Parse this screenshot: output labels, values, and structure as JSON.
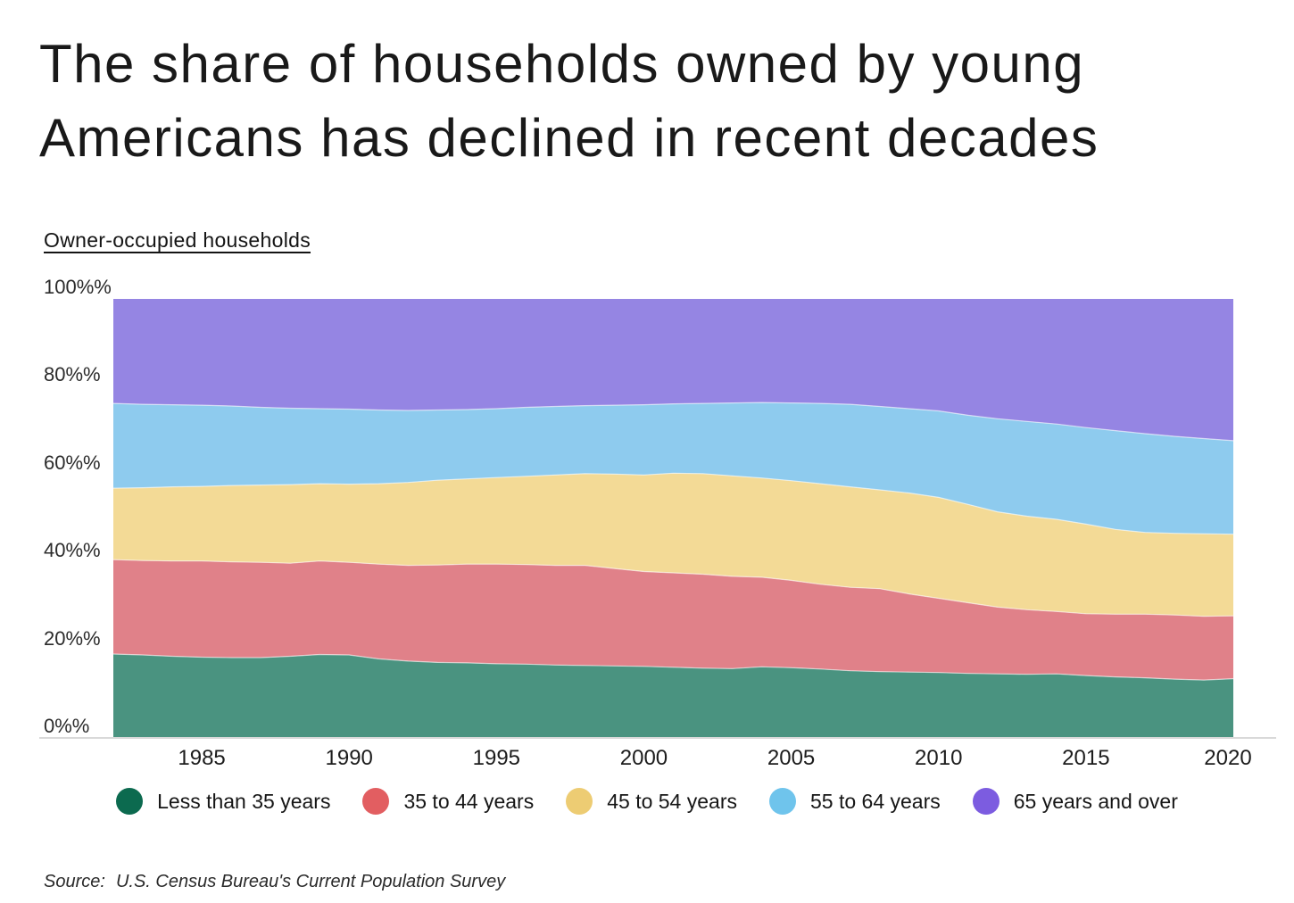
{
  "title": {
    "line1": "The share of households owned by young",
    "line2": "Americans has declined in recent decades",
    "full": "The share of households owned by young Americans has declined in recent decades"
  },
  "subtitle": "Owner-occupied households",
  "source": {
    "prefix": "Source:",
    "text": "U.S. Census Bureau's Current Population Survey"
  },
  "y_axis": {
    "tick_labels": [
      "100%%",
      "80%%",
      "60%%",
      "40%%",
      "20%%",
      "0%%"
    ],
    "tick_values": [
      100,
      80,
      60,
      40,
      20,
      0
    ]
  },
  "x_axis": {
    "tick_labels": [
      "1985",
      "1990",
      "1995",
      "2000",
      "2005",
      "2010",
      "2015",
      "2020"
    ],
    "tick_values": [
      1985,
      1990,
      1995,
      2000,
      2005,
      2010,
      2015,
      2020
    ]
  },
  "colors": {
    "axis_line": "#d9d9d9",
    "boundary_line": "#ffffff",
    "text": "#1a1a1a"
  },
  "chart_data": {
    "type": "area",
    "stacked": true,
    "normalized": true,
    "title": "The share of households owned by young Americans has declined in recent decades",
    "ylabel": "Owner-occupied households",
    "xlabel": "",
    "ylim": [
      0,
      100
    ],
    "x_range": [
      1982,
      2020
    ],
    "grid": false,
    "legend_position": "bottom",
    "x": [
      1982,
      1983,
      1984,
      1985,
      1986,
      1987,
      1988,
      1989,
      1990,
      1991,
      1992,
      1993,
      1994,
      1995,
      1996,
      1997,
      1998,
      1999,
      2000,
      2001,
      2002,
      2003,
      2004,
      2005,
      2006,
      2007,
      2008,
      2009,
      2010,
      2011,
      2012,
      2013,
      2014,
      2015,
      2016,
      2017,
      2018,
      2019,
      2020
    ],
    "series": [
      {
        "name": "Less than 35 years",
        "color": "#0c6a4f",
        "fill": "#4a9380",
        "values": [
          19.1,
          18.9,
          18.6,
          18.4,
          18.3,
          18.3,
          18.6,
          19.0,
          18.9,
          18.0,
          17.5,
          17.2,
          17.1,
          16.9,
          16.8,
          16.6,
          16.5,
          16.4,
          16.3,
          16.1,
          15.9,
          15.8,
          16.2,
          16.0,
          15.7,
          15.3,
          15.1,
          15.0,
          14.9,
          14.7,
          14.6,
          14.5,
          14.6,
          14.2,
          13.9,
          13.7,
          13.4,
          13.2,
          13.5
        ]
      },
      {
        "name": "35 to 44 years",
        "color": "#e25e61",
        "fill": "#e08189",
        "values": [
          21.5,
          21.5,
          21.7,
          21.9,
          21.8,
          21.7,
          21.2,
          21.3,
          21.1,
          21.6,
          21.8,
          22.2,
          22.5,
          22.7,
          22.7,
          22.7,
          22.8,
          22.2,
          21.6,
          21.5,
          21.4,
          21.0,
          20.4,
          19.9,
          19.3,
          19.0,
          18.9,
          17.8,
          16.9,
          16.1,
          15.2,
          14.7,
          14.2,
          14.1,
          14.3,
          14.5,
          14.6,
          14.5,
          14.3
        ]
      },
      {
        "name": "45 to 54 years",
        "color": "#edcc73",
        "fill": "#f3da96",
        "values": [
          16.3,
          16.6,
          16.9,
          17.0,
          17.4,
          17.6,
          17.9,
          17.6,
          17.8,
          18.3,
          18.9,
          19.3,
          19.4,
          19.7,
          20.1,
          20.6,
          20.9,
          21.5,
          22.0,
          22.7,
          22.9,
          22.9,
          22.6,
          22.7,
          22.9,
          22.9,
          22.5,
          23.0,
          23.0,
          22.4,
          21.7,
          21.3,
          21.0,
          20.4,
          19.3,
          18.6,
          18.6,
          18.8,
          18.6
        ]
      },
      {
        "name": "55 to 64 years",
        "color": "#6fc4ec",
        "fill": "#8ecbee",
        "values": [
          19.3,
          19.0,
          18.7,
          18.5,
          18.1,
          17.7,
          17.4,
          17.1,
          17.1,
          16.8,
          16.4,
          16.0,
          15.8,
          15.7,
          15.7,
          15.6,
          15.5,
          15.7,
          16.0,
          15.8,
          16.0,
          16.6,
          17.2,
          17.7,
          18.3,
          18.8,
          19.0,
          19.2,
          19.7,
          20.3,
          21.2,
          21.6,
          21.7,
          22.0,
          22.5,
          22.5,
          22.1,
          21.7,
          21.3
        ]
      },
      {
        "name": "65 years and over",
        "color": "#7c5ce0",
        "fill": "#9585e3",
        "values": [
          23.8,
          24.0,
          24.1,
          24.2,
          24.4,
          24.7,
          24.9,
          25.0,
          25.1,
          25.3,
          25.4,
          25.3,
          25.2,
          25.0,
          24.7,
          24.5,
          24.3,
          24.2,
          24.1,
          23.9,
          23.8,
          23.7,
          23.6,
          23.7,
          23.8,
          24.0,
          24.5,
          25.0,
          25.5,
          26.5,
          27.3,
          27.9,
          28.5,
          29.3,
          30.0,
          30.7,
          31.3,
          31.8,
          32.3
        ]
      }
    ]
  }
}
